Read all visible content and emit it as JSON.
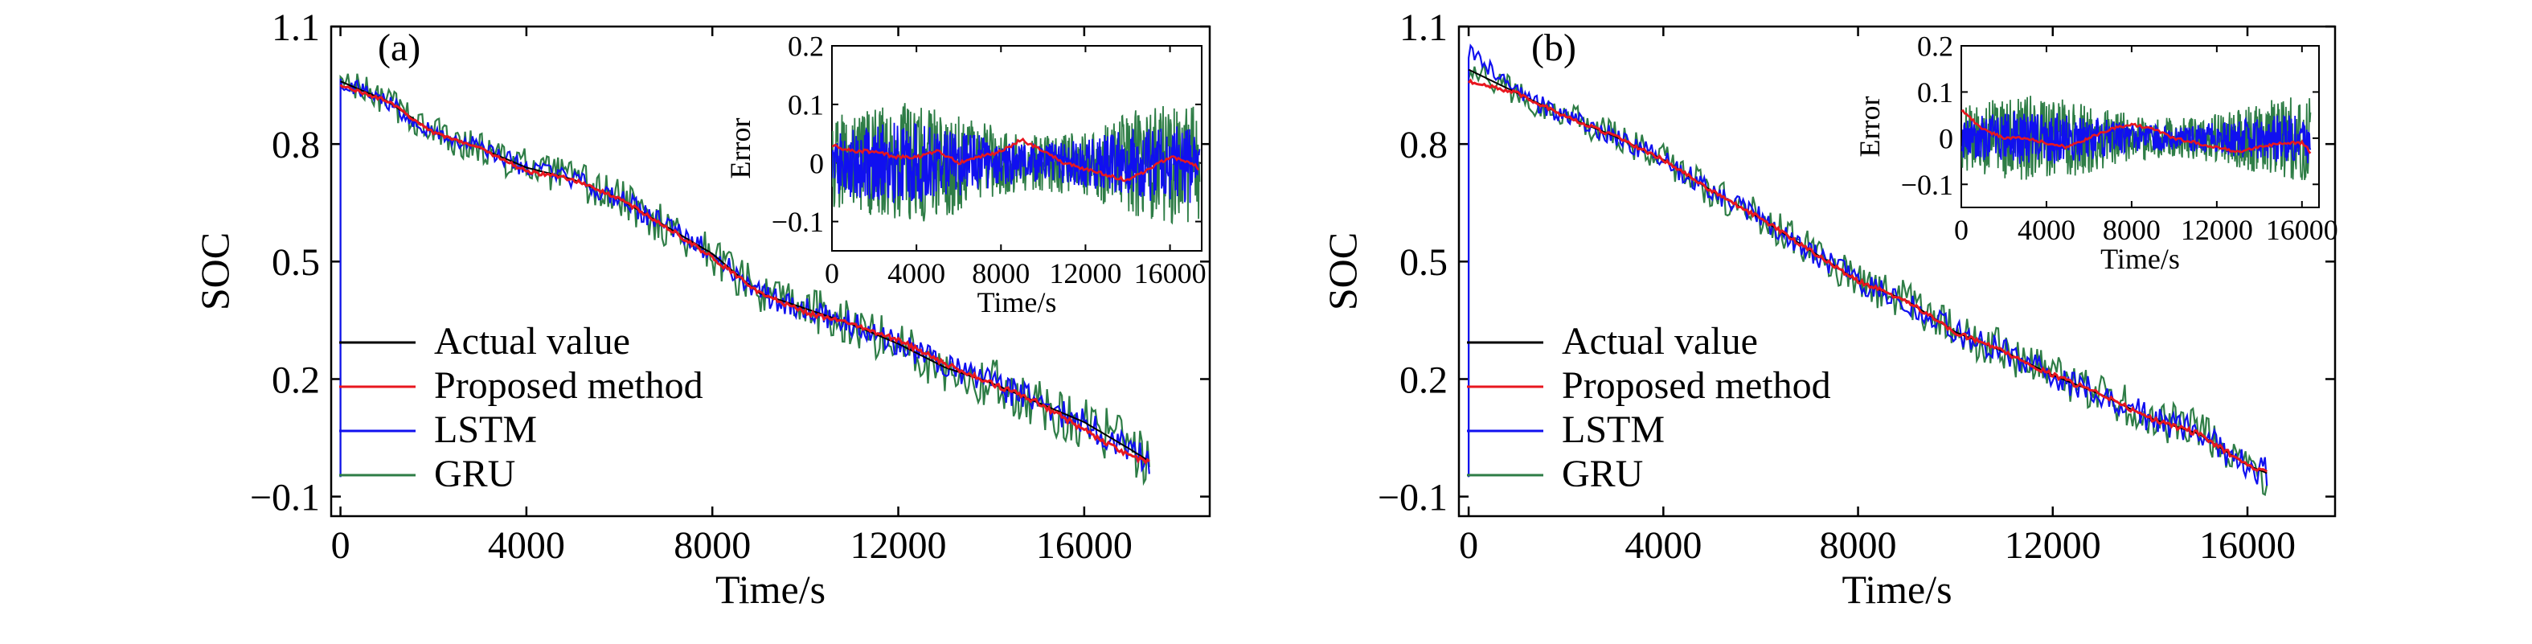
{
  "figure": {
    "series_legend": [
      "Actual value",
      "Proposed method",
      "LSTM",
      "GRU"
    ],
    "series_colors": {
      "Actual value": "#000000",
      "Proposed method": "#e8171f",
      "LSTM": "#1010f0",
      "GRU": "#2e7d46"
    }
  },
  "chart_data": [
    {
      "type": "line",
      "panel_label": "(a)",
      "xlabel": "Time/s",
      "ylabel": "SOC",
      "xlim": [
        -200,
        18700
      ],
      "ylim": [
        -0.15,
        1.1
      ],
      "xticks": [
        0,
        4000,
        8000,
        12000,
        16000
      ],
      "yticks": [
        1.1,
        0.8,
        0.5,
        0.2,
        -0.1
      ],
      "ytick_labels": [
        "1.1",
        "0.8",
        "0.5",
        "0.2",
        "−0.1"
      ],
      "legend_position": "bottom-left",
      "x": [
        0,
        1000,
        2000,
        3000,
        4000,
        5000,
        6000,
        7000,
        8000,
        9000,
        10000,
        11000,
        12000,
        13000,
        14000,
        15000,
        16000,
        17000,
        17400
      ],
      "series": [
        {
          "name": "Actual value",
          "values": [
            0.96,
            0.91,
            0.83,
            0.79,
            0.74,
            0.71,
            0.66,
            0.59,
            0.52,
            0.42,
            0.38,
            0.34,
            0.29,
            0.23,
            0.19,
            0.14,
            0.09,
            0.02,
            -0.01
          ],
          "noise": 0
        },
        {
          "name": "Proposed method",
          "values": [
            0.95,
            0.91,
            0.83,
            0.79,
            0.73,
            0.71,
            0.66,
            0.59,
            0.51,
            0.42,
            0.37,
            0.34,
            0.3,
            0.24,
            0.19,
            0.14,
            0.07,
            0.0,
            -0.01
          ],
          "noise": 0.004
        },
        {
          "name": "LSTM",
          "values": [
            0.96,
            0.91,
            0.83,
            0.79,
            0.74,
            0.71,
            0.66,
            0.59,
            0.52,
            0.42,
            0.38,
            0.34,
            0.29,
            0.23,
            0.19,
            0.14,
            0.09,
            0.02,
            -0.01
          ],
          "noise": 0.022
        },
        {
          "name": "GRU",
          "values": [
            0.96,
            0.91,
            0.83,
            0.79,
            0.74,
            0.71,
            0.66,
            0.59,
            0.52,
            0.42,
            0.38,
            0.34,
            0.29,
            0.23,
            0.19,
            0.14,
            0.09,
            0.02,
            -0.01
          ],
          "noise": 0.04
        }
      ],
      "inset": {
        "type": "line",
        "xlabel": "Time/s",
        "ylabel": "Error",
        "xlim": [
          0,
          17500
        ],
        "ylim": [
          -0.15,
          0.2
        ],
        "xticks": [
          0,
          4000,
          8000,
          12000,
          16000
        ],
        "yticks": [
          0.2,
          0.1,
          0,
          -0.1
        ],
        "ytick_labels": [
          "0.2",
          "0.1",
          "0",
          "−0.1"
        ],
        "x": [
          0,
          1000,
          2000,
          3000,
          4000,
          5000,
          6000,
          7000,
          8000,
          9000,
          10000,
          11000,
          12000,
          13000,
          14000,
          15000,
          16000,
          17000,
          17400
        ],
        "series": [
          {
            "name": "Proposed method",
            "values": [
              0.03,
              0.02,
              0.02,
              0.01,
              0.01,
              0.02,
              0.0,
              0.01,
              0.02,
              0.04,
              0.02,
              0.0,
              -0.01,
              -0.02,
              -0.03,
              -0.01,
              0.01,
              0.0,
              -0.01
            ]
          },
          {
            "name": "LSTM",
            "values": [
              0.0,
              0.0,
              0.0,
              0.0,
              0.0,
              0.0,
              0.0,
              0.0,
              0.0,
              0.0,
              0.0,
              0.0,
              0.0,
              0.0,
              0.0,
              0.0,
              0.0,
              0.0,
              0.0
            ],
            "spread": 0.06
          },
          {
            "name": "GRU",
            "values": [
              0.0,
              0.0,
              0.0,
              0.0,
              0.0,
              0.0,
              0.0,
              0.0,
              0.0,
              0.0,
              0.0,
              0.0,
              0.0,
              0.0,
              0.0,
              0.0,
              0.0,
              0.0,
              0.0
            ],
            "spread": 0.09
          }
        ]
      }
    },
    {
      "type": "line",
      "panel_label": "(b)",
      "xlabel": "Time/s",
      "ylabel": "SOC",
      "xlim": [
        -200,
        17800
      ],
      "ylim": [
        -0.15,
        1.1
      ],
      "xticks": [
        0,
        4000,
        8000,
        12000,
        16000
      ],
      "yticks": [
        1.1,
        0.8,
        0.5,
        0.2,
        -0.1
      ],
      "ytick_labels": [
        "1.1",
        "0.8",
        "0.5",
        "0.2",
        "−0.1"
      ],
      "legend_position": "bottom-left",
      "x": [
        0,
        1000,
        2000,
        3000,
        4000,
        5000,
        6000,
        7000,
        8000,
        9000,
        10000,
        11000,
        12000,
        13000,
        14000,
        15000,
        16000,
        16400
      ],
      "series": [
        {
          "name": "Actual value",
          "values": [
            0.99,
            0.93,
            0.87,
            0.82,
            0.76,
            0.68,
            0.61,
            0.53,
            0.45,
            0.4,
            0.32,
            0.27,
            0.21,
            0.16,
            0.1,
            0.06,
            -0.02,
            -0.04
          ],
          "noise": 0
        },
        {
          "name": "Proposed method",
          "values": [
            0.96,
            0.93,
            0.87,
            0.82,
            0.76,
            0.68,
            0.61,
            0.53,
            0.45,
            0.4,
            0.32,
            0.27,
            0.21,
            0.16,
            0.1,
            0.06,
            -0.02,
            -0.04
          ],
          "noise": 0.004
        },
        {
          "name": "LSTM",
          "values": [
            1.04,
            0.93,
            0.87,
            0.82,
            0.76,
            0.68,
            0.61,
            0.53,
            0.45,
            0.4,
            0.32,
            0.27,
            0.21,
            0.16,
            0.1,
            0.06,
            -0.02,
            -0.04
          ],
          "noise": 0.022
        },
        {
          "name": "GRU",
          "values": [
            1.0,
            0.93,
            0.87,
            0.82,
            0.76,
            0.68,
            0.61,
            0.53,
            0.45,
            0.4,
            0.32,
            0.27,
            0.21,
            0.16,
            0.1,
            0.06,
            -0.02,
            -0.04
          ],
          "noise": 0.035
        }
      ],
      "inset": {
        "type": "line",
        "xlabel": "Time/s",
        "ylabel": "Error",
        "xlim": [
          0,
          16800
        ],
        "ylim": [
          -0.15,
          0.2
        ],
        "xticks": [
          0,
          4000,
          8000,
          12000,
          16000
        ],
        "yticks": [
          0.2,
          0.1,
          0,
          -0.1
        ],
        "ytick_labels": [
          "0.2",
          "0.1",
          "0",
          "−0.1"
        ],
        "x": [
          0,
          1000,
          2000,
          3000,
          4000,
          5000,
          6000,
          7000,
          8000,
          9000,
          10000,
          11000,
          12000,
          13000,
          14000,
          15000,
          16000,
          16400
        ],
        "series": [
          {
            "name": "Proposed method",
            "values": [
              0.06,
              0.02,
              0.0,
              0.0,
              -0.01,
              -0.02,
              0.0,
              0.02,
              0.03,
              0.02,
              0.0,
              -0.01,
              -0.02,
              -0.03,
              -0.02,
              -0.01,
              -0.01,
              -0.03
            ]
          },
          {
            "name": "LSTM",
            "values": [
              0.0,
              0.0,
              0.0,
              0.0,
              0.0,
              0.0,
              0.0,
              0.0,
              0.0,
              0.0,
              0.0,
              0.0,
              0.0,
              0.0,
              0.0,
              0.0,
              0.0,
              0.0
            ],
            "spread": 0.05
          },
          {
            "name": "GRU",
            "values": [
              0.0,
              0.0,
              0.0,
              0.0,
              0.0,
              0.0,
              0.0,
              0.0,
              0.0,
              0.0,
              0.0,
              0.0,
              0.0,
              0.0,
              0.0,
              0.0,
              0.0,
              0.0
            ],
            "spread": 0.08
          }
        ]
      }
    }
  ]
}
